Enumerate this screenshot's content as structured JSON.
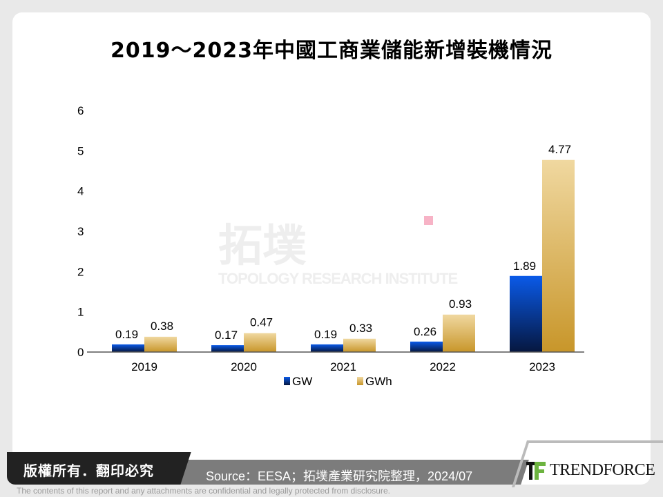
{
  "title": "2019～2023年中國工商業儲能新增裝機情況",
  "watermark": {
    "cn": "拓墣",
    "en": "TOPOLOGY RESEARCH INSTITUTE"
  },
  "chart_data": {
    "type": "bar",
    "categories": [
      "2019",
      "2020",
      "2021",
      "2022",
      "2023"
    ],
    "series": [
      {
        "name": "GW",
        "values": [
          0.19,
          0.17,
          0.19,
          0.26,
          1.89
        ],
        "color": "#0a3a9e"
      },
      {
        "name": "GWh",
        "values": [
          0.38,
          0.47,
          0.33,
          0.93,
          4.77
        ],
        "color": "#dcb45e"
      }
    ],
    "data_labels": [
      [
        "0.19",
        "0.17",
        "0.19",
        "0.26",
        "1.89"
      ],
      [
        "0.38",
        "0.47",
        "0.33",
        "0.93",
        "4.77"
      ]
    ],
    "yticks": [
      "0",
      "1",
      "2",
      "3",
      "4",
      "5",
      "6"
    ],
    "ylim": [
      0,
      6
    ],
    "grid": false,
    "legend_position": "bottom"
  },
  "footer": {
    "copyright": "版權所有．翻印必究",
    "source": "Source：EESA；拓墣產業研究院整理，2024/07",
    "logo_text": "TRENDFORCE",
    "disclaimer": "The contents of this report and any attachments are confidential and legally protected from disclosure."
  }
}
